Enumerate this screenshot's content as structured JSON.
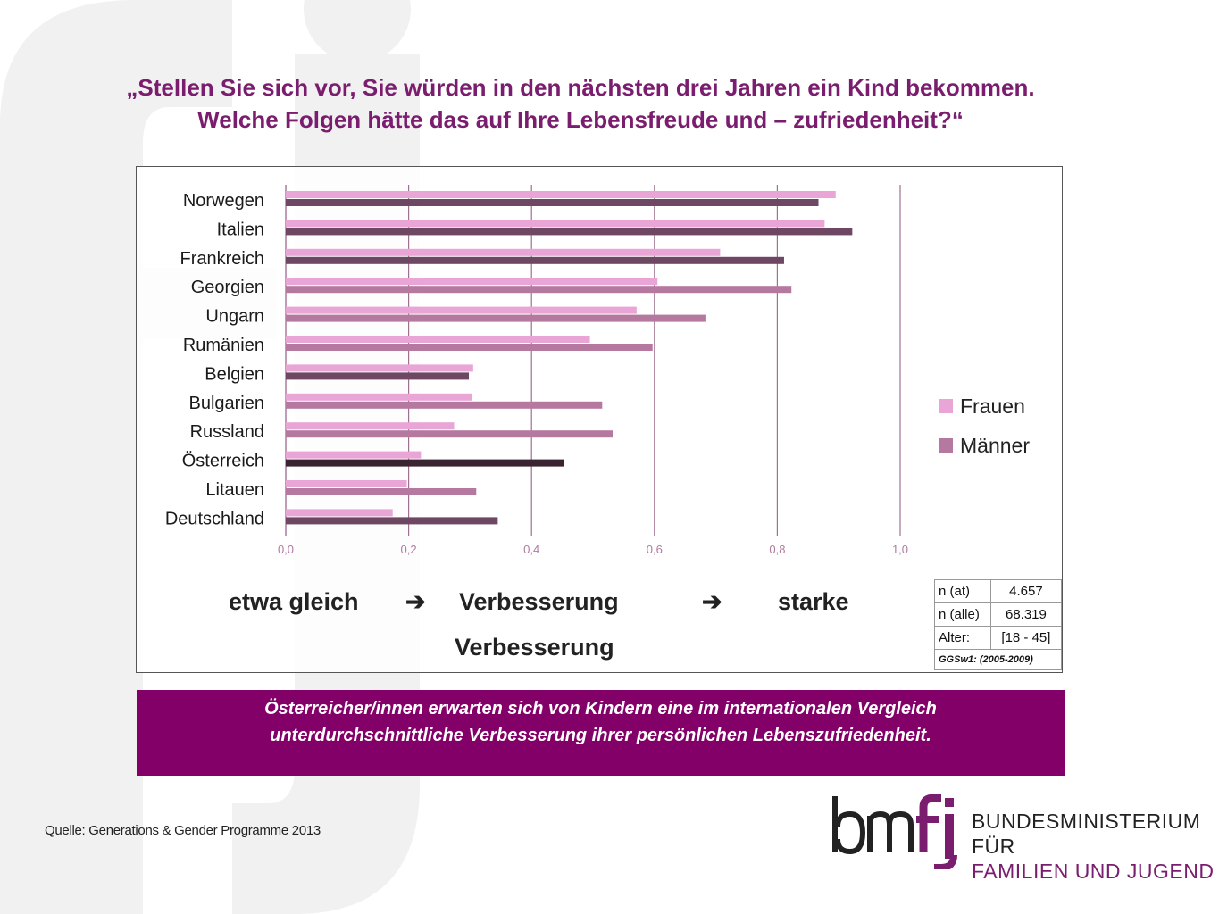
{
  "title_lines": [
    "„Stellen Sie sich vor, Sie würden in den nächsten drei Jahren ein Kind bekommen.",
    "Welche Folgen hätte das auf Ihre Lebensfreude und – zufriedenheit?“"
  ],
  "chart_data": {
    "type": "bar",
    "orientation": "horizontal",
    "categories": [
      "Norwegen",
      "Italien",
      "Frankreich",
      "Georgien",
      "Ungarn",
      "Rumänien",
      "Belgien",
      "Bulgarien",
      "Russland",
      "Österreich",
      "Litauen",
      "Deutschland"
    ],
    "series": [
      {
        "name": "Frauen",
        "values": [
          0.895,
          0.877,
          0.707,
          0.605,
          0.571,
          0.495,
          0.305,
          0.303,
          0.274,
          0.22,
          0.197,
          0.174
        ]
      },
      {
        "name": "Männer",
        "values": [
          0.867,
          0.922,
          0.811,
          0.823,
          0.683,
          0.597,
          0.298,
          0.515,
          0.532,
          0.453,
          0.31,
          0.345
        ]
      }
    ],
    "xlim": [
      0,
      1
    ],
    "xticks": [
      "0,0",
      "0,2",
      "0,4",
      "0,6",
      "0,8",
      "1,0"
    ],
    "xtick_values": [
      0,
      0.2,
      0.4,
      0.6,
      0.8,
      1.0
    ],
    "grid": true,
    "legend_position": "right"
  },
  "legend": [
    {
      "label": "Frauen",
      "color": "#e8a5d6"
    },
    {
      "label": "Männer",
      "color": "#b5799f"
    }
  ],
  "colors": {
    "frauen": "#e8a5d6",
    "maenner": "#b5799f",
    "maenner_dark": "#6e4862",
    "oesterreich_maenner": "#3a2432",
    "grid": "#a07090",
    "tick": "#b07aa0"
  },
  "scale_labels": {
    "low": "etwa gleich",
    "arrow1": "➔",
    "mid": "Verbesserung",
    "arrow2": "➔",
    "high_line1": "starke",
    "high_line2": "Verbesserung"
  },
  "info_table": {
    "rows": [
      {
        "key": "n (at)",
        "value": "4.657"
      },
      {
        "key": "n (alle)",
        "value": "68.319"
      },
      {
        "key": "Alter:",
        "value": "[18 - 45]"
      }
    ],
    "source": "GGSw1: (2005-2009)"
  },
  "banner_lines": [
    "Österreicher/innen erwarten sich von Kindern eine im internationalen Vergleich",
    "unterdurchschnittliche Verbesserung ihrer persönlichen Lebenszufriedenheit."
  ],
  "source_text": "Quelle: Generations & Gender Programme 2013",
  "logo": {
    "mark": "bmfj",
    "line1": "BUNDESMINISTERIUM FÜR",
    "line2": "FAMILIEN UND JUGEND"
  }
}
